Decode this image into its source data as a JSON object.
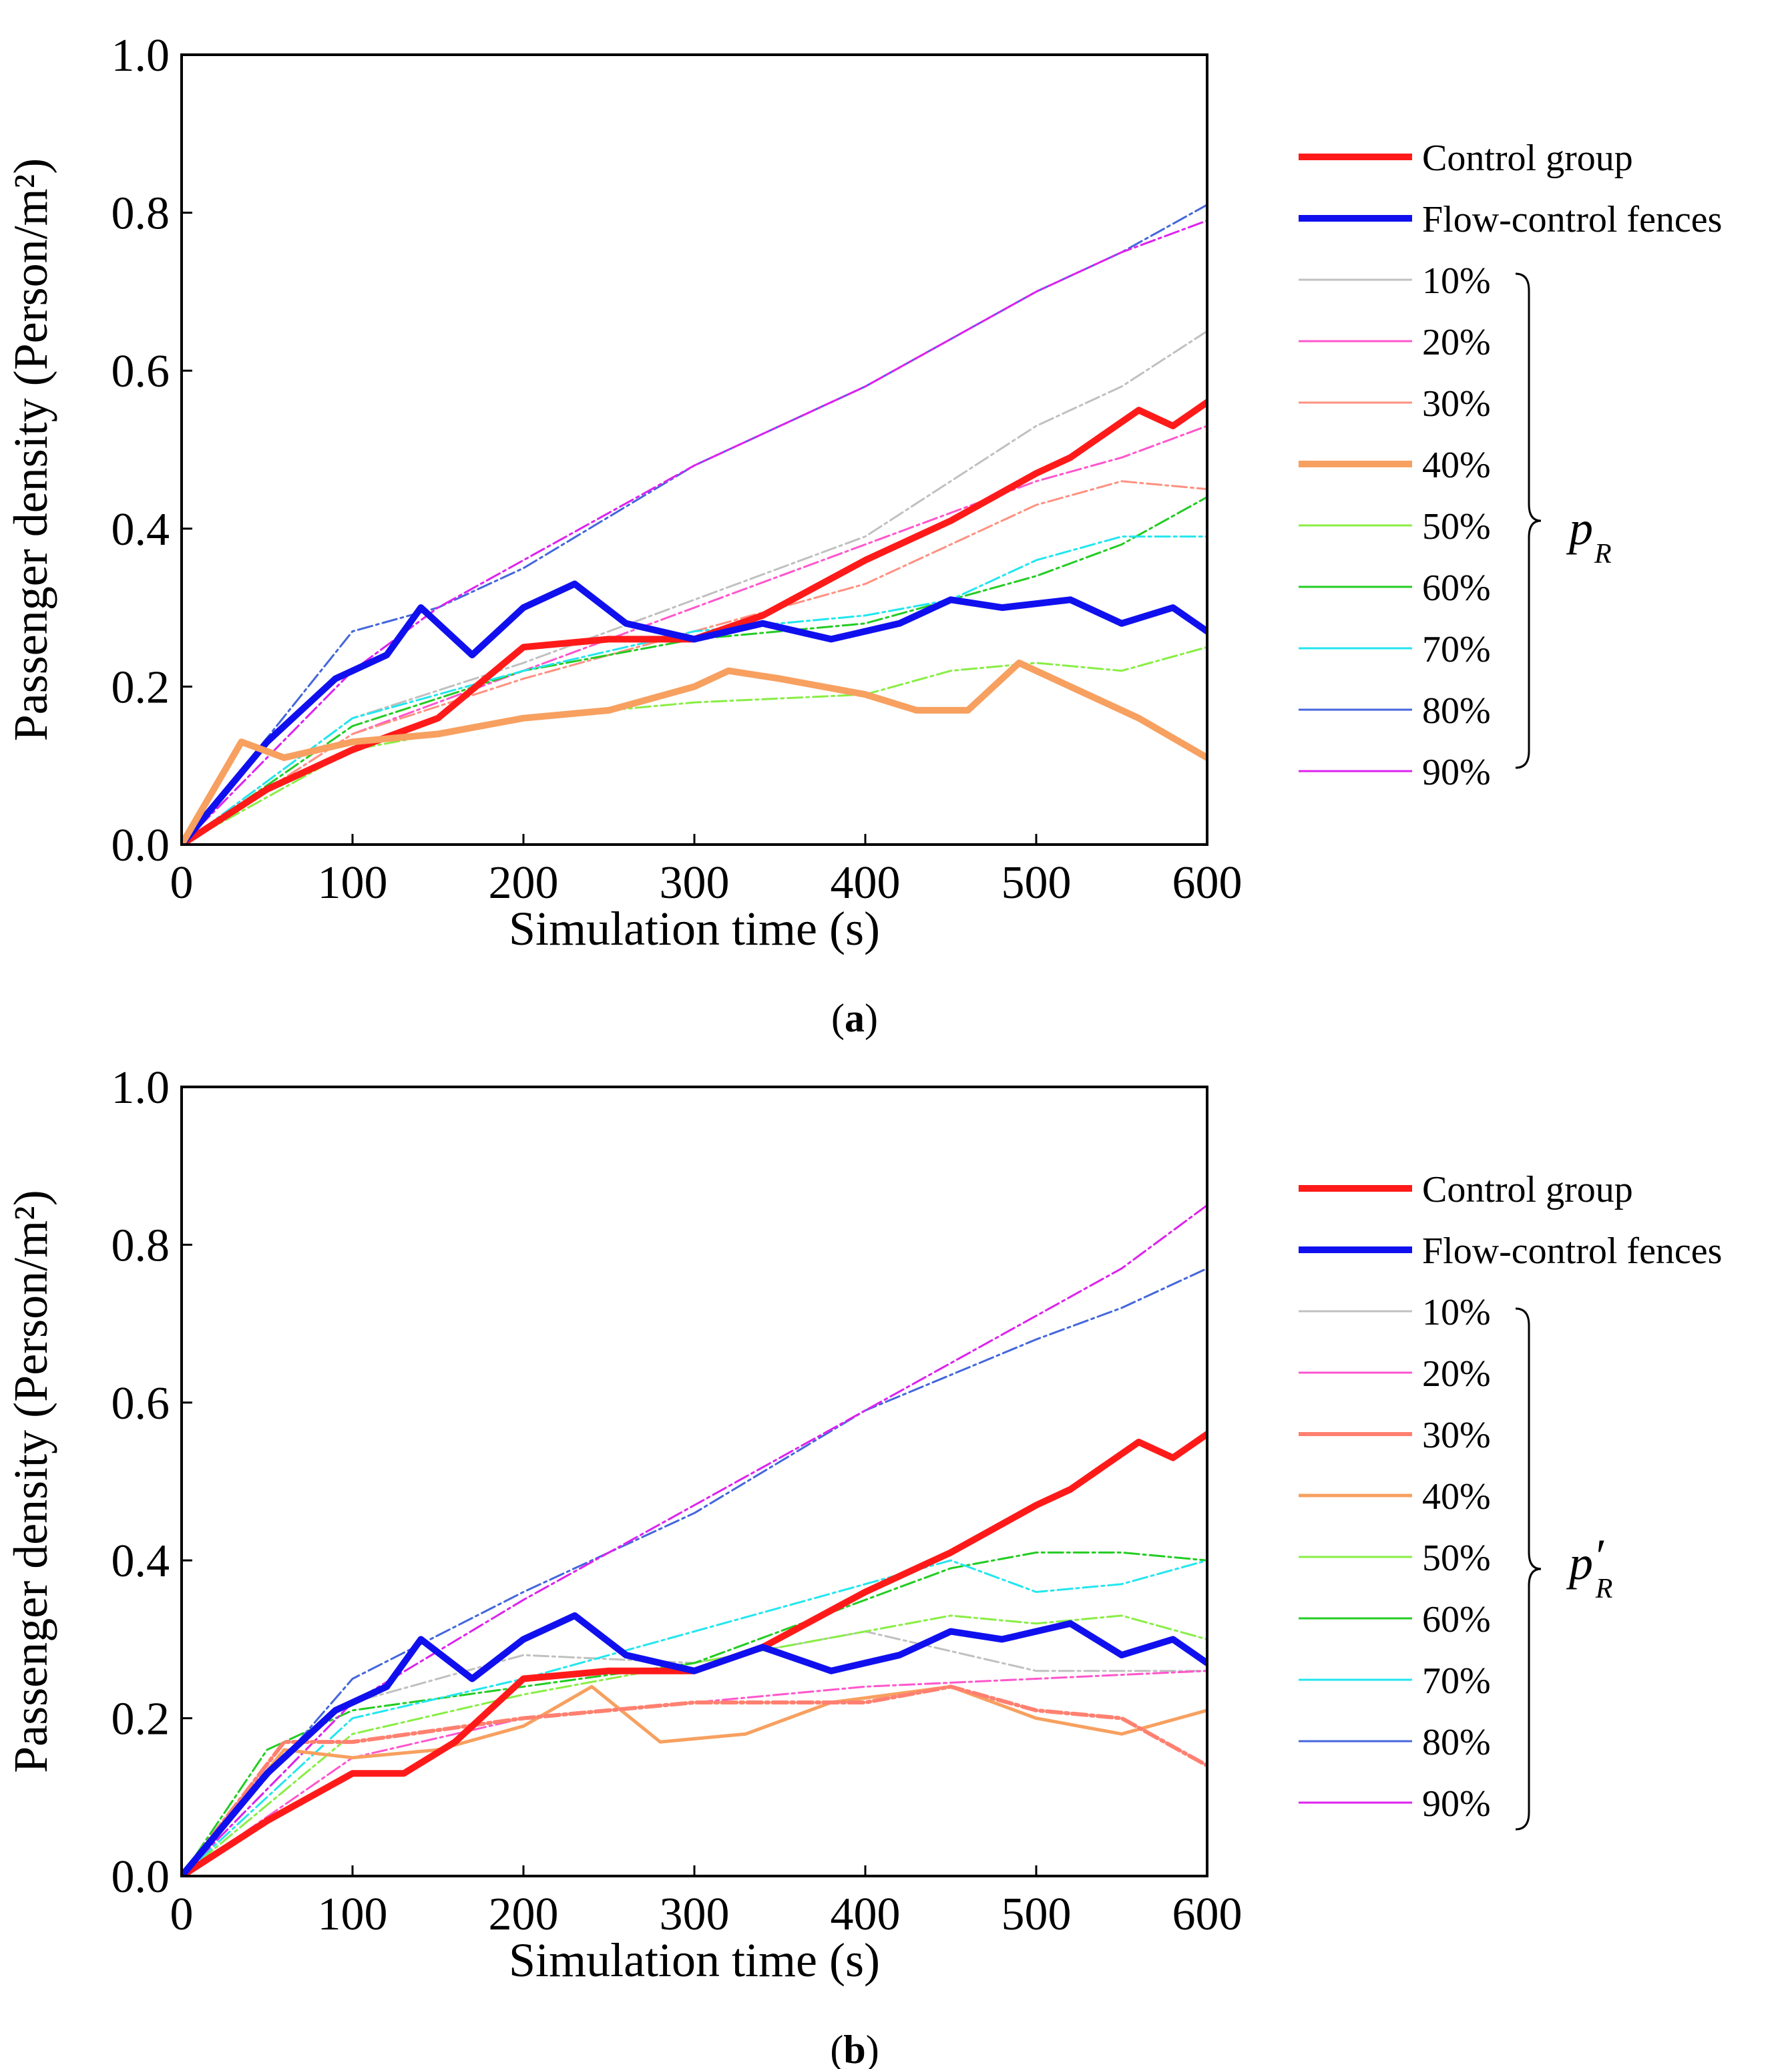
{
  "figure": {
    "panels": [
      {
        "id": "a",
        "caption_letter": "a",
        "group_symbol": "p",
        "group_subscript": "R",
        "group_prime": ""
      },
      {
        "id": "b",
        "caption_letter": "b",
        "group_symbol": "p",
        "group_subscript": "R",
        "group_prime": "′"
      }
    ]
  },
  "chart_data": [
    {
      "type": "line",
      "panel": "a",
      "xlabel": "Simulation time (s)",
      "ylabel": "Passenger density (Person/m²)",
      "xlim": [
        0,
        600
      ],
      "ylim": [
        0,
        1.0
      ],
      "xticks": [
        0,
        100,
        200,
        300,
        400,
        500,
        600
      ],
      "yticks": [
        "0.0",
        "0.2",
        "0.4",
        "0.6",
        "0.8",
        "1.0"
      ],
      "grid": false,
      "legend_position": "right",
      "group_label": "p_R",
      "series": [
        {
          "name": "Control group",
          "color": "#ff1a1a",
          "width": 10,
          "dashed": false,
          "x": [
            0,
            50,
            100,
            150,
            200,
            250,
            300,
            340,
            400,
            450,
            500,
            520,
            560,
            580,
            600
          ],
          "y": [
            0.0,
            0.07,
            0.12,
            0.16,
            0.25,
            0.26,
            0.26,
            0.29,
            0.36,
            0.41,
            0.47,
            0.49,
            0.55,
            0.53,
            0.56
          ]
        },
        {
          "name": "Flow-control fences",
          "color": "#1010ee",
          "width": 10,
          "dashed": false,
          "x": [
            0,
            50,
            90,
            120,
            140,
            170,
            200,
            230,
            260,
            300,
            340,
            380,
            420,
            450,
            480,
            520,
            550,
            580,
            600
          ],
          "y": [
            0.0,
            0.13,
            0.21,
            0.24,
            0.3,
            0.24,
            0.3,
            0.33,
            0.28,
            0.26,
            0.28,
            0.26,
            0.28,
            0.31,
            0.3,
            0.31,
            0.28,
            0.3,
            0.27
          ]
        },
        {
          "name": "10%",
          "color": "#c0c0c0",
          "width": 3,
          "dashed": true,
          "x": [
            0,
            100,
            200,
            300,
            400,
            450,
            500,
            550,
            600
          ],
          "y": [
            0.0,
            0.16,
            0.23,
            0.31,
            0.39,
            0.46,
            0.53,
            0.58,
            0.65
          ]
        },
        {
          "name": "20%",
          "color": "#ff55cc",
          "width": 3,
          "dashed": true,
          "x": [
            0,
            100,
            200,
            300,
            400,
            500,
            550,
            600
          ],
          "y": [
            0.0,
            0.14,
            0.22,
            0.3,
            0.38,
            0.46,
            0.49,
            0.53
          ]
        },
        {
          "name": "30%",
          "color": "#ff9080",
          "width": 3,
          "dashed": true,
          "x": [
            0,
            100,
            200,
            300,
            400,
            450,
            500,
            550,
            600
          ],
          "y": [
            0.0,
            0.14,
            0.21,
            0.27,
            0.33,
            0.38,
            0.43,
            0.46,
            0.45
          ]
        },
        {
          "name": "40%",
          "color": "#f7a060",
          "width": 10,
          "dashed": false,
          "x": [
            0,
            35,
            60,
            100,
            150,
            200,
            250,
            300,
            320,
            350,
            400,
            430,
            460,
            490,
            520,
            560,
            600
          ],
          "y": [
            0.0,
            0.13,
            0.11,
            0.13,
            0.14,
            0.16,
            0.17,
            0.2,
            0.22,
            0.21,
            0.19,
            0.17,
            0.17,
            0.23,
            0.2,
            0.16,
            0.11
          ]
        },
        {
          "name": "50%",
          "color": "#88ee44",
          "width": 3,
          "dashed": true,
          "x": [
            0,
            100,
            200,
            300,
            400,
            450,
            500,
            550,
            600
          ],
          "y": [
            0.0,
            0.12,
            0.16,
            0.18,
            0.19,
            0.22,
            0.23,
            0.22,
            0.25
          ]
        },
        {
          "name": "60%",
          "color": "#22cc22",
          "width": 3,
          "dashed": true,
          "x": [
            0,
            100,
            200,
            300,
            400,
            450,
            500,
            550,
            600
          ],
          "y": [
            0.0,
            0.15,
            0.22,
            0.26,
            0.28,
            0.31,
            0.34,
            0.38,
            0.44
          ]
        },
        {
          "name": "70%",
          "color": "#22e6ee",
          "width": 3,
          "dashed": true,
          "x": [
            0,
            100,
            200,
            300,
            400,
            450,
            500,
            550,
            600
          ],
          "y": [
            0.0,
            0.16,
            0.22,
            0.27,
            0.29,
            0.31,
            0.36,
            0.39,
            0.39
          ]
        },
        {
          "name": "80%",
          "color": "#4466dd",
          "width": 3,
          "dashed": true,
          "x": [
            0,
            100,
            150,
            200,
            300,
            400,
            500,
            550,
            600
          ],
          "y": [
            0.0,
            0.27,
            0.3,
            0.35,
            0.48,
            0.58,
            0.7,
            0.75,
            0.81
          ]
        },
        {
          "name": "90%",
          "color": "#dd22ee",
          "width": 3,
          "dashed": true,
          "x": [
            0,
            100,
            150,
            200,
            300,
            400,
            500,
            550,
            600
          ],
          "y": [
            0.0,
            0.22,
            0.3,
            0.36,
            0.48,
            0.58,
            0.7,
            0.75,
            0.79
          ]
        }
      ]
    },
    {
      "type": "line",
      "panel": "b",
      "xlabel": "Simulation time (s)",
      "ylabel": "Passenger density (Person/m²)",
      "xlim": [
        0,
        600
      ],
      "ylim": [
        0,
        1.0
      ],
      "xticks": [
        0,
        100,
        200,
        300,
        400,
        500,
        600
      ],
      "yticks": [
        "0.0",
        "0.2",
        "0.4",
        "0.6",
        "0.8",
        "1.0"
      ],
      "grid": false,
      "legend_position": "right",
      "group_label": "p′_R",
      "series": [
        {
          "name": "Control group",
          "color": "#ff1a1a",
          "width": 10,
          "dashed": false,
          "x": [
            0,
            50,
            100,
            130,
            160,
            200,
            250,
            300,
            340,
            400,
            450,
            500,
            520,
            560,
            580,
            600
          ],
          "y": [
            0.0,
            0.07,
            0.13,
            0.13,
            0.17,
            0.25,
            0.26,
            0.26,
            0.29,
            0.36,
            0.41,
            0.47,
            0.49,
            0.55,
            0.53,
            0.56
          ]
        },
        {
          "name": "Flow-control fences",
          "color": "#1010ee",
          "width": 10,
          "dashed": false,
          "x": [
            0,
            50,
            90,
            120,
            140,
            170,
            200,
            230,
            260,
            300,
            340,
            380,
            420,
            450,
            480,
            520,
            550,
            580,
            600
          ],
          "y": [
            0.0,
            0.13,
            0.21,
            0.24,
            0.3,
            0.25,
            0.3,
            0.33,
            0.28,
            0.26,
            0.29,
            0.26,
            0.28,
            0.31,
            0.3,
            0.32,
            0.28,
            0.3,
            0.27
          ]
        },
        {
          "name": "10%",
          "color": "#c0c0c0",
          "width": 3,
          "dashed": true,
          "x": [
            0,
            100,
            200,
            300,
            400,
            500,
            600
          ],
          "y": [
            0.0,
            0.22,
            0.28,
            0.27,
            0.31,
            0.26,
            0.26
          ]
        },
        {
          "name": "20%",
          "color": "#ff55cc",
          "width": 3,
          "dashed": true,
          "x": [
            0,
            100,
            200,
            300,
            400,
            500,
            600
          ],
          "y": [
            0.0,
            0.15,
            0.2,
            0.22,
            0.24,
            0.25,
            0.26
          ]
        },
        {
          "name": "30%",
          "color": "#ff8070",
          "width": 6,
          "dashed": true,
          "x": [
            0,
            60,
            100,
            200,
            300,
            400,
            450,
            500,
            550,
            600
          ],
          "y": [
            0.0,
            0.17,
            0.17,
            0.2,
            0.22,
            0.22,
            0.24,
            0.21,
            0.2,
            0.14
          ]
        },
        {
          "name": "40%",
          "color": "#f7a060",
          "width": 5,
          "dashed": false,
          "x": [
            0,
            60,
            100,
            150,
            200,
            240,
            280,
            330,
            380,
            450,
            500,
            550,
            600
          ],
          "y": [
            0.0,
            0.16,
            0.15,
            0.16,
            0.19,
            0.24,
            0.17,
            0.18,
            0.22,
            0.24,
            0.2,
            0.18,
            0.21
          ]
        },
        {
          "name": "50%",
          "color": "#88ee44",
          "width": 3,
          "dashed": true,
          "x": [
            0,
            100,
            200,
            300,
            400,
            450,
            500,
            550,
            600
          ],
          "y": [
            0.0,
            0.18,
            0.23,
            0.27,
            0.31,
            0.33,
            0.32,
            0.33,
            0.3
          ]
        },
        {
          "name": "60%",
          "color": "#22cc22",
          "width": 3,
          "dashed": true,
          "x": [
            0,
            50,
            100,
            200,
            300,
            400,
            450,
            500,
            550,
            600
          ],
          "y": [
            0.0,
            0.16,
            0.21,
            0.24,
            0.27,
            0.35,
            0.39,
            0.41,
            0.41,
            0.4
          ]
        },
        {
          "name": "70%",
          "color": "#22e6ee",
          "width": 3,
          "dashed": true,
          "x": [
            0,
            100,
            200,
            300,
            400,
            450,
            500,
            550,
            600
          ],
          "y": [
            0.0,
            0.2,
            0.25,
            0.31,
            0.37,
            0.4,
            0.36,
            0.37,
            0.4
          ]
        },
        {
          "name": "80%",
          "color": "#4466dd",
          "width": 3,
          "dashed": true,
          "x": [
            0,
            100,
            200,
            300,
            400,
            500,
            550,
            600
          ],
          "y": [
            0.0,
            0.25,
            0.36,
            0.46,
            0.59,
            0.68,
            0.72,
            0.77
          ]
        },
        {
          "name": "90%",
          "color": "#dd22ee",
          "width": 3,
          "dashed": true,
          "x": [
            0,
            100,
            200,
            300,
            400,
            500,
            550,
            600
          ],
          "y": [
            0.0,
            0.22,
            0.35,
            0.47,
            0.59,
            0.71,
            0.77,
            0.85
          ]
        }
      ]
    }
  ]
}
